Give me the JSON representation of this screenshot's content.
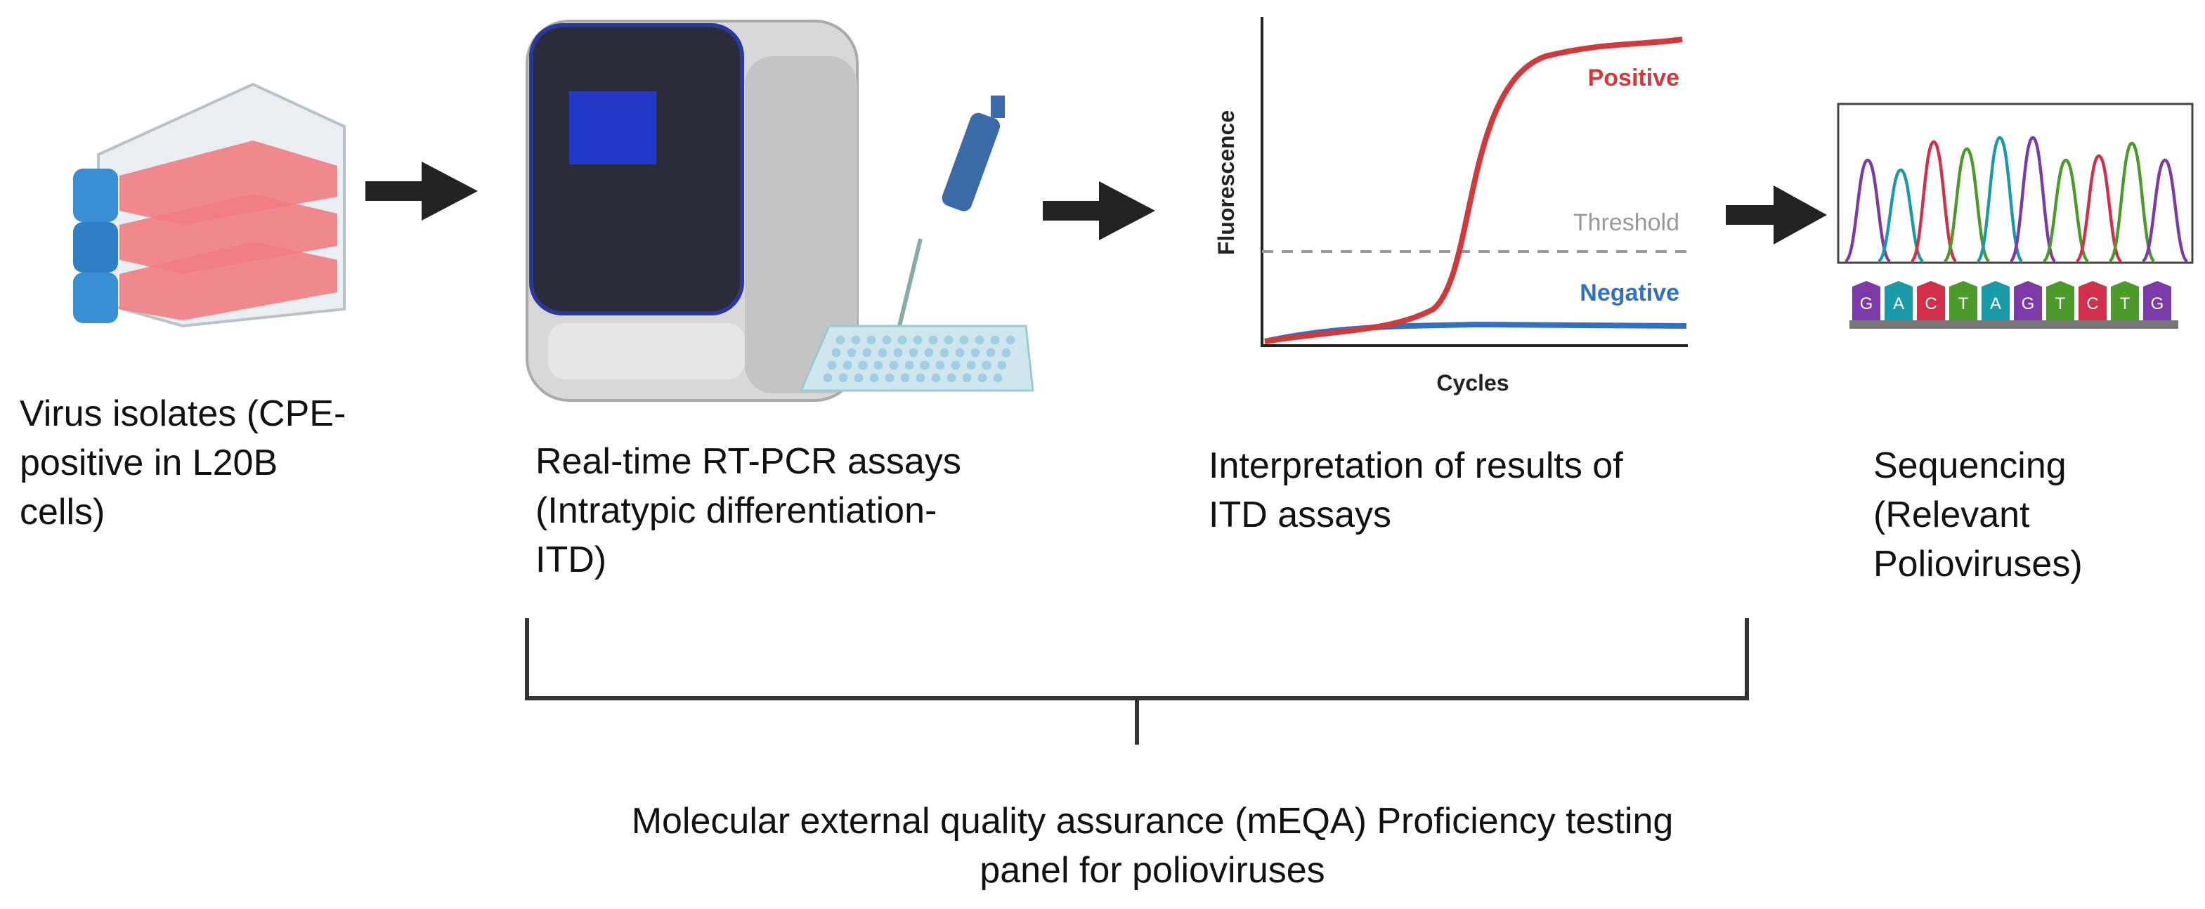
{
  "steps": [
    {
      "lines": [
        "Virus isolates (CPE-",
        "positive in L20B",
        "cells)"
      ]
    },
    {
      "lines": [
        "Real-time RT-PCR assays",
        "(Intratypic differentiation-",
        "ITD)"
      ]
    },
    {
      "lines": [
        "Interpretation of results of",
        "ITD assays"
      ]
    },
    {
      "lines": [
        "Sequencing",
        "(Relevant",
        "Polioviruses)"
      ]
    }
  ],
  "plot": {
    "y_label": "Fluorescence",
    "x_label": "Cycles",
    "positive": "Positive",
    "threshold": "Threshold",
    "negative": "Negative"
  },
  "sequence": [
    "G",
    "A",
    "C",
    "T",
    "A",
    "G",
    "T",
    "C",
    "T",
    "G"
  ],
  "panel": {
    "lines": [
      "Molecular external quality assurance (mEQA) Proficiency testing",
      "panel for polioviruses"
    ]
  }
}
